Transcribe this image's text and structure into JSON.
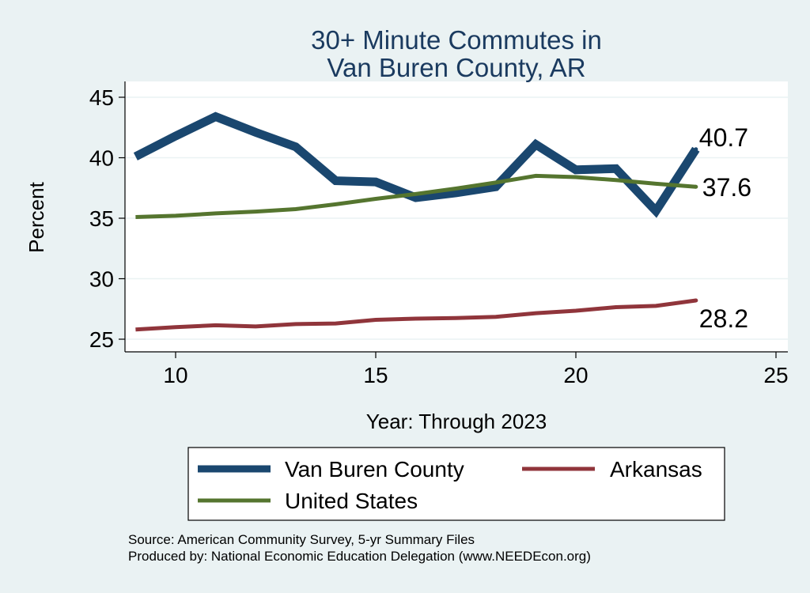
{
  "chart_data": {
    "type": "line",
    "title_lines": [
      "30+ Minute Commutes in",
      "Van Buren County, AR"
    ],
    "xlabel": "Year: Through 2023",
    "ylabel": "Percent",
    "xlim": [
      9,
      25
    ],
    "ylim": [
      25,
      45
    ],
    "x_ticks": [
      10,
      15,
      20,
      25
    ],
    "y_ticks": [
      25,
      30,
      35,
      40,
      45
    ],
    "grid": true,
    "legend_position": "bottom",
    "x": [
      9,
      10,
      11,
      12,
      13,
      14,
      15,
      16,
      17,
      18,
      19,
      20,
      21,
      22,
      23
    ],
    "series": [
      {
        "name": "Van Buren County",
        "color": "#1a476f",
        "values": [
          40.1,
          41.8,
          43.4,
          42.1,
          40.9,
          38.1,
          38.0,
          36.7,
          37.1,
          37.6,
          41.1,
          39.0,
          39.1,
          35.6,
          40.7
        ],
        "end_label": "40.7"
      },
      {
        "name": "United States",
        "color": "#55752f",
        "values": [
          35.1,
          35.2,
          35.4,
          35.55,
          35.75,
          36.15,
          36.6,
          37.0,
          37.45,
          37.95,
          38.5,
          38.4,
          38.15,
          37.85,
          37.6
        ],
        "end_label": "37.6"
      },
      {
        "name": "Arkansas",
        "color": "#90353b",
        "values": [
          25.8,
          26.0,
          26.15,
          26.05,
          26.25,
          26.3,
          26.6,
          26.7,
          26.75,
          26.85,
          27.15,
          27.35,
          27.65,
          27.75,
          28.2
        ],
        "end_label": "28.2"
      }
    ]
  },
  "footer": {
    "source": "Source: American Community Survey, 5-yr Summary Files",
    "produced_by": "Produced by: National Economic Education Delegation (www.NEEDEcon.org)"
  }
}
